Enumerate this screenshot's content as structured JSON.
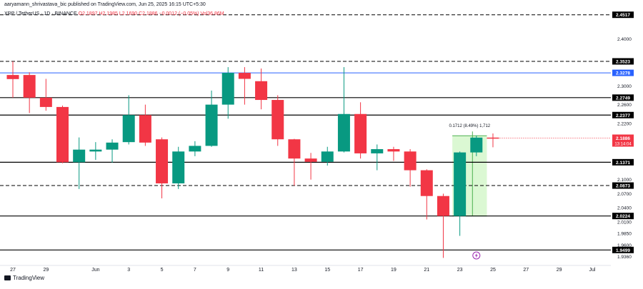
{
  "publisher_line": "aaryamann_shrivastava_bic published on TradingView.com, Jun 25, 2025 16:15 UTC+5:30",
  "symbol": "XRP / TetherUS · 1D · BINANCE",
  "ohlc": "O2.1897  H2.1985  L2.1690  C2.1886  −0.0012 (−0.05%)  Vol36.86M",
  "logo_text": "TradingView",
  "colors": {
    "up": "#089981",
    "down": "#f23645",
    "hline": "#000000",
    "blue_line": "#2962ff",
    "box": "#ccf5c1"
  },
  "chart_data": {
    "type": "candlestick",
    "ylim": [
      1.926,
      2.468
    ],
    "candles": [
      {
        "d": "May 27",
        "o": 2.3232,
        "h": 2.3523,
        "l": 2.2749,
        "c": 2.3145
      },
      {
        "d": "May 28",
        "o": 2.3232,
        "h": 2.329,
        "l": 2.242,
        "c": 2.2749
      },
      {
        "d": "May 29",
        "o": 2.2749,
        "h": 2.315,
        "l": 2.247,
        "c": 2.255
      },
      {
        "d": "May 30",
        "o": 2.255,
        "h": 2.258,
        "l": 2.135,
        "c": 2.1371
      },
      {
        "d": "May 31",
        "o": 2.1371,
        "h": 2.19,
        "l": 2.08,
        "c": 2.164
      },
      {
        "d": "Jun 1",
        "o": 2.16,
        "h": 2.18,
        "l": 2.142,
        "c": 2.164
      },
      {
        "d": "Jun 2",
        "o": 2.164,
        "h": 2.186,
        "l": 2.136,
        "c": 2.179
      },
      {
        "d": "Jun 3",
        "o": 2.18,
        "h": 2.28,
        "l": 2.175,
        "c": 2.2377
      },
      {
        "d": "Jun 4",
        "o": 2.2377,
        "h": 2.26,
        "l": 2.172,
        "c": 2.179
      },
      {
        "d": "Jun 5",
        "o": 2.186,
        "h": 2.19,
        "l": 2.06,
        "c": 2.092
      },
      {
        "d": "Jun 6",
        "o": 2.092,
        "h": 2.17,
        "l": 2.08,
        "c": 2.16
      },
      {
        "d": "Jun 7",
        "o": 2.16,
        "h": 2.182,
        "l": 2.15,
        "c": 2.172
      },
      {
        "d": "Jun 8",
        "o": 2.172,
        "h": 2.29,
        "l": 2.17,
        "c": 2.26
      },
      {
        "d": "Jun 9",
        "o": 2.26,
        "h": 2.34,
        "l": 2.23,
        "c": 2.3278
      },
      {
        "d": "Jun 10",
        "o": 2.3278,
        "h": 2.34,
        "l": 2.26,
        "c": 2.315
      },
      {
        "d": "Jun 11",
        "o": 2.31,
        "h": 2.337,
        "l": 2.25,
        "c": 2.27
      },
      {
        "d": "Jun 12",
        "o": 2.27,
        "h": 2.28,
        "l": 2.172,
        "c": 2.186
      },
      {
        "d": "Jun 13",
        "o": 2.186,
        "h": 2.187,
        "l": 2.087,
        "c": 2.145
      },
      {
        "d": "Jun 14",
        "o": 2.145,
        "h": 2.157,
        "l": 2.1,
        "c": 2.138
      },
      {
        "d": "Jun 15",
        "o": 2.138,
        "h": 2.17,
        "l": 2.13,
        "c": 2.16
      },
      {
        "d": "Jun 16",
        "o": 2.16,
        "h": 2.34,
        "l": 2.158,
        "c": 2.24
      },
      {
        "d": "Jun 17",
        "o": 2.24,
        "h": 2.265,
        "l": 2.145,
        "c": 2.156
      },
      {
        "d": "Jun 18",
        "o": 2.156,
        "h": 2.175,
        "l": 2.12,
        "c": 2.165
      },
      {
        "d": "Jun 19",
        "o": 2.165,
        "h": 2.17,
        "l": 2.14,
        "c": 2.16
      },
      {
        "d": "Jun 20",
        "o": 2.16,
        "h": 2.165,
        "l": 2.085,
        "c": 2.12
      },
      {
        "d": "Jun 21",
        "o": 2.12,
        "h": 2.122,
        "l": 2.015,
        "c": 2.065
      },
      {
        "d": "Jun 22",
        "o": 2.065,
        "h": 2.07,
        "l": 1.933,
        "c": 2.0224
      },
      {
        "d": "Jun 23",
        "o": 2.0224,
        "h": 2.16,
        "l": 1.98,
        "c": 2.158
      },
      {
        "d": "Jun 24",
        "o": 2.158,
        "h": 2.194,
        "l": 2.15,
        "c": 2.1897
      },
      {
        "d": "Jun 25",
        "o": 2.1897,
        "h": 2.1985,
        "l": 2.169,
        "c": 2.1886
      }
    ],
    "price_ticks": [
      "2.4000",
      "2.3000",
      "2.2600",
      "2.2200",
      "2.1000",
      "2.0700",
      "2.0400",
      "2.0100",
      "1.9850",
      "1.9600",
      "1.9360"
    ],
    "tick_values": [
      2.4,
      2.3,
      2.26,
      2.22,
      2.1,
      2.07,
      2.04,
      2.01,
      1.985,
      1.96,
      1.936
    ],
    "levels": [
      {
        "value": 2.4517,
        "label": "2.4517",
        "style": "dashed"
      },
      {
        "value": 2.3523,
        "label": "2.3523",
        "style": "dashed"
      },
      {
        "value": 2.3278,
        "label": "2.3278",
        "style": "blue"
      },
      {
        "value": 2.2749,
        "label": "2.2749",
        "style": "solid"
      },
      {
        "value": 2.2377,
        "label": "2.2377",
        "style": "solid"
      },
      {
        "value": 2.1371,
        "label": "2.1371",
        "style": "solid"
      },
      {
        "value": 2.0873,
        "label": "2.0873",
        "style": "dashed"
      },
      {
        "value": 2.0224,
        "label": "2.0224",
        "style": "solid"
      },
      {
        "value": 1.9499,
        "label": "1.9499",
        "style": "solid"
      }
    ],
    "current_price": {
      "value": 2.1886,
      "label": "2.1886",
      "countdown": "13:14:04"
    },
    "x_labels": [
      {
        "label": "27",
        "d": "May 27"
      },
      {
        "label": "29",
        "d": "May 29"
      },
      {
        "label": "Jun",
        "d": "Jun 1"
      },
      {
        "label": "3",
        "d": "Jun 3"
      },
      {
        "label": "5",
        "d": "Jun 5"
      },
      {
        "label": "7",
        "d": "Jun 7"
      },
      {
        "label": "9",
        "d": "Jun 9"
      },
      {
        "label": "11",
        "d": "Jun 11"
      },
      {
        "label": "13",
        "d": "Jun 13"
      },
      {
        "label": "15",
        "d": "Jun 15"
      },
      {
        "label": "17",
        "d": "Jun 17"
      },
      {
        "label": "19",
        "d": "Jun 19"
      },
      {
        "label": "21",
        "d": "Jun 21"
      },
      {
        "label": "23",
        "d": "Jun 23"
      },
      {
        "label": "25",
        "d": "Jun 25"
      },
      {
        "label": "27",
        "d": "Jun 27"
      },
      {
        "label": "29",
        "d": "Jun 29"
      },
      {
        "label": "Jul",
        "d": "Jul 1"
      }
    ],
    "x_range": [
      "May 27",
      "Jul 1"
    ],
    "measure": {
      "from_date": "Jun 23",
      "to_date": "Jun 25",
      "from_price": 2.0224,
      "to_price": 2.1936,
      "label": "0.1712 (8.49%) 1,712"
    }
  }
}
